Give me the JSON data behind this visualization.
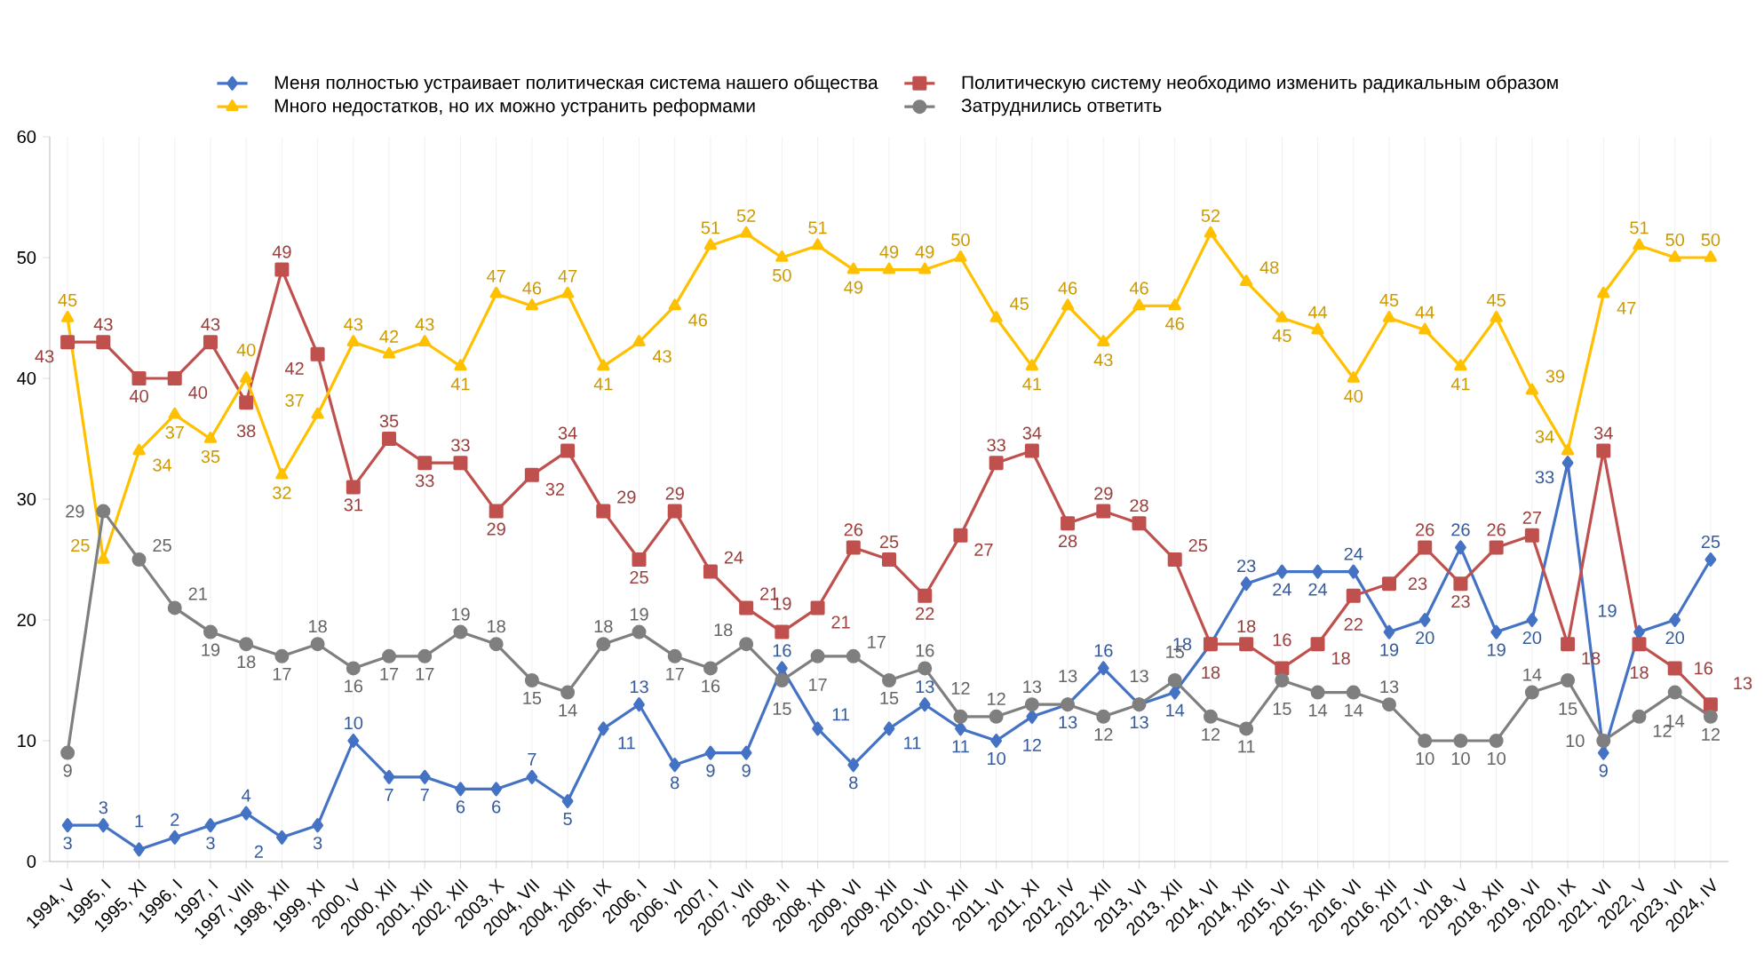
{
  "chart_data": {
    "type": "line",
    "categories": [
      "1994, V",
      "1995, I",
      "1995, XI",
      "1996, I",
      "1997, I",
      "1997, VIII",
      "1998, XII",
      "1999, XI",
      "2000, V",
      "2000, XII",
      "2001, XII",
      "2002, XII",
      "2003, X",
      "2004, VII",
      "2004, XII",
      "2005, IX",
      "2006, I",
      "2006, VI",
      "2007, I",
      "2007, VII",
      "2008, II",
      "2008, XI",
      "2009, VI",
      "2009, XII",
      "2010, VI",
      "2010, XII",
      "2011, VI",
      "2011, XI",
      "2012, IV",
      "2012, XII",
      "2013, VI",
      "2013, XII",
      "2014, VI",
      "2014, XII",
      "2015, VI",
      "2015, XII",
      "2016, VI",
      "2016, XII",
      "2017, VI",
      "2018, V",
      "2018, XII",
      "2019, VI",
      "2020, IX",
      "2021, VI",
      "2022, V",
      "2023, VI",
      "2024, IV"
    ],
    "series": [
      {
        "name": "Меня полностью устраивает политическая система нашего общества",
        "color": "#4472c4",
        "marker": "diamond",
        "values": [
          3,
          3,
          1,
          2,
          3,
          4,
          2,
          3,
          10,
          7,
          7,
          6,
          6,
          7,
          5,
          11,
          13,
          8,
          9,
          9,
          16,
          11,
          8,
          11,
          13,
          11,
          10,
          12,
          13,
          16,
          13,
          14,
          18,
          23,
          24,
          24,
          24,
          19,
          20,
          26,
          19,
          20,
          33,
          9,
          19,
          20,
          25
        ]
      },
      {
        "name": "Политическую систему необходимо изменить радикальным образом",
        "color": "#c0504d",
        "marker": "square",
        "values": [
          43,
          43,
          40,
          40,
          43,
          38,
          49,
          42,
          31,
          35,
          33,
          33,
          29,
          32,
          34,
          29,
          25,
          29,
          24,
          21,
          19,
          21,
          26,
          25,
          22,
          27,
          33,
          34,
          28,
          29,
          28,
          25,
          18,
          18,
          16,
          18,
          22,
          23,
          26,
          23,
          26,
          27,
          18,
          34,
          18,
          16,
          13
        ]
      },
      {
        "name": "Много недостатков, но их можно устранить реформами",
        "color": "#ffc000",
        "marker": "triangle",
        "values": [
          45,
          25,
          34,
          37,
          35,
          40,
          32,
          37,
          43,
          42,
          43,
          41,
          47,
          46,
          47,
          41,
          43,
          46,
          51,
          52,
          50,
          51,
          49,
          49,
          49,
          50,
          45,
          41,
          46,
          43,
          46,
          46,
          52,
          48,
          45,
          44,
          40,
          45,
          44,
          41,
          45,
          39,
          34,
          47,
          51,
          50,
          50
        ]
      },
      {
        "name": "Затруднились ответить",
        "color": "#7f7f7f",
        "marker": "circle",
        "values": [
          9,
          29,
          25,
          21,
          19,
          18,
          17,
          18,
          16,
          17,
          17,
          19,
          18,
          15,
          14,
          18,
          19,
          17,
          16,
          18,
          15,
          17,
          17,
          15,
          16,
          12,
          12,
          13,
          13,
          12,
          13,
          15,
          12,
          11,
          15,
          14,
          14,
          13,
          10,
          10,
          10,
          14,
          15,
          10,
          12,
          14,
          12
        ]
      }
    ],
    "ylim": [
      0,
      60
    ],
    "yticks": [
      0,
      10,
      20,
      30,
      40,
      50,
      60
    ],
    "grid": "x",
    "legend": "top",
    "data_labels": true
  }
}
